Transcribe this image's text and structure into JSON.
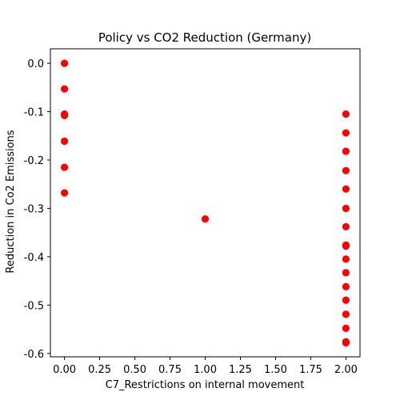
{
  "chart_data": {
    "type": "scatter",
    "title": "Policy vs CO2 Reduction (Germany)",
    "xlabel": "C7_Restrictions on internal movement",
    "ylabel": "Reduction in Co2 Emissions",
    "xlim": [
      -0.1,
      2.1
    ],
    "ylim": [
      -0.607,
      0.03
    ],
    "grid": false,
    "marker_color": "#ff0000",
    "xticks": [
      0.0,
      0.25,
      0.5,
      0.75,
      1.0,
      1.25,
      1.5,
      1.75,
      2.0
    ],
    "xtick_labels": [
      "0.00",
      "0.25",
      "0.50",
      "0.75",
      "1.00",
      "1.25",
      "1.50",
      "1.75",
      "2.00"
    ],
    "yticks": [
      0.0,
      -0.1,
      -0.2,
      -0.3,
      -0.4,
      -0.5,
      -0.6
    ],
    "ytick_labels": [
      "0.0",
      "-0.1",
      "-0.2",
      "-0.3",
      "-0.4",
      "-0.5",
      "-0.6"
    ],
    "points": [
      {
        "x": 0,
        "y": 0.0
      },
      {
        "x": 0,
        "y": -0.053
      },
      {
        "x": 0,
        "y": -0.105
      },
      {
        "x": 0,
        "y": -0.108
      },
      {
        "x": 0,
        "y": -0.161
      },
      {
        "x": 0,
        "y": -0.215
      },
      {
        "x": 0,
        "y": -0.268
      },
      {
        "x": 1,
        "y": -0.322
      },
      {
        "x": 2,
        "y": -0.105
      },
      {
        "x": 2,
        "y": -0.144
      },
      {
        "x": 2,
        "y": -0.182
      },
      {
        "x": 2,
        "y": -0.222
      },
      {
        "x": 2,
        "y": -0.26
      },
      {
        "x": 2,
        "y": -0.3
      },
      {
        "x": 2,
        "y": -0.338
      },
      {
        "x": 2,
        "y": -0.376
      },
      {
        "x": 2,
        "y": -0.378
      },
      {
        "x": 2,
        "y": -0.405
      },
      {
        "x": 2,
        "y": -0.433
      },
      {
        "x": 2,
        "y": -0.462
      },
      {
        "x": 2,
        "y": -0.49
      },
      {
        "x": 2,
        "y": -0.519
      },
      {
        "x": 2,
        "y": -0.548
      },
      {
        "x": 2,
        "y": -0.576
      },
      {
        "x": 2,
        "y": -0.578
      }
    ]
  }
}
